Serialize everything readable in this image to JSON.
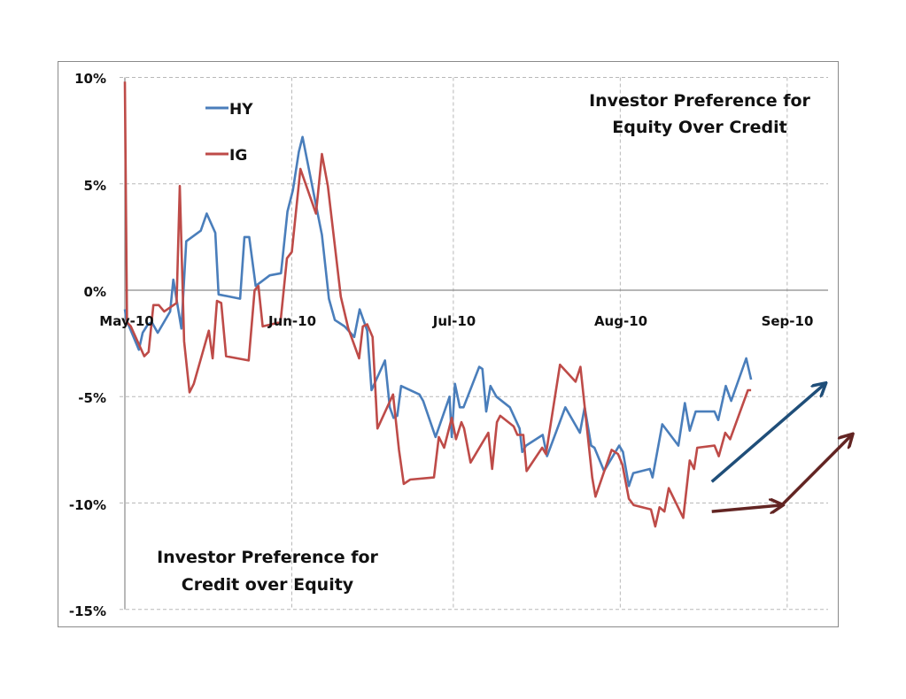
{
  "chart_data": {
    "type": "line",
    "title": "",
    "xlabel": "",
    "ylabel": "",
    "ylim": [
      -15,
      10
    ],
    "y_ticks": [
      "10%",
      "5%",
      "0%",
      "-5%",
      "-10%",
      "-15%"
    ],
    "y_tick_values": [
      10,
      5,
      0,
      -5,
      -10,
      -15
    ],
    "x_ticks": [
      "May-10",
      "Jun-10",
      "Jul-10",
      "Aug-10",
      "Sep-10"
    ],
    "x_tick_days": [
      0,
      31,
      61,
      92,
      123
    ],
    "grid": true,
    "legend": {
      "position": "upper-left-inside",
      "entries": [
        "HY",
        "IG"
      ]
    },
    "annotations": [
      {
        "text": [
          "Investor Preference for",
          "Equity Over Credit"
        ],
        "position": "upper-right"
      },
      {
        "text": [
          "Investor Preference for",
          "Credit over Equity"
        ],
        "position": "lower-left"
      },
      {
        "type": "arrow",
        "color": "#1f4e79",
        "series": "HY",
        "description": "upward trend arrow",
        "from_day": 109,
        "from_value": -9.0,
        "to_day": 130,
        "to_value": -4.4
      },
      {
        "type": "arrow",
        "color": "#632523",
        "series": "IG",
        "description": "flat arrow",
        "from_day": 109,
        "from_value": -10.4,
        "to_day": 122,
        "to_value": -10.1
      },
      {
        "type": "arrow",
        "color": "#632523",
        "series": "IG",
        "description": "upward trend arrow",
        "from_day": 122,
        "from_value": -10.1,
        "to_day": 135,
        "to_value": -6.8
      }
    ],
    "x_unit": "days since 2010-05-01",
    "series": [
      {
        "name": "HY",
        "color": "#4a7ebb",
        "points": [
          [
            0,
            -0.9
          ],
          [
            0.3,
            -1.4
          ],
          [
            2.6,
            -2.8
          ],
          [
            3.3,
            -2.0
          ],
          [
            4.3,
            -1.6
          ],
          [
            5.0,
            -1.5
          ],
          [
            6.1,
            -2.0
          ],
          [
            8.4,
            -1.0
          ],
          [
            9.0,
            0.5
          ],
          [
            10.5,
            -1.8
          ],
          [
            11.4,
            2.3
          ],
          [
            14.1,
            2.8
          ],
          [
            15.2,
            3.6
          ],
          [
            16.8,
            2.7
          ],
          [
            17.4,
            -0.2
          ],
          [
            21.4,
            -0.4
          ],
          [
            22.2,
            2.5
          ],
          [
            23.1,
            2.5
          ],
          [
            24.3,
            0.2
          ],
          [
            26.9,
            0.7
          ],
          [
            29.0,
            0.8
          ],
          [
            30.2,
            3.7
          ],
          [
            31.2,
            4.7
          ],
          [
            32.3,
            6.5
          ],
          [
            33.0,
            7.2
          ],
          [
            35.5,
            4.0
          ],
          [
            36.6,
            2.6
          ],
          [
            37.9,
            -0.4
          ],
          [
            39.0,
            -1.4
          ],
          [
            40.8,
            -1.7
          ],
          [
            42.6,
            -2.2
          ],
          [
            43.6,
            -0.9
          ],
          [
            45.0,
            -1.9
          ],
          [
            45.8,
            -4.7
          ],
          [
            48.3,
            -3.3
          ],
          [
            49.2,
            -5.5
          ],
          [
            49.9,
            -6.0
          ],
          [
            50.6,
            -5.9
          ],
          [
            51.3,
            -4.5
          ],
          [
            54.7,
            -4.9
          ],
          [
            55.4,
            -5.2
          ],
          [
            57.7,
            -6.9
          ],
          [
            60.3,
            -5.0
          ],
          [
            60.7,
            -6.9
          ],
          [
            61.3,
            -4.4
          ],
          [
            62.2,
            -5.5
          ],
          [
            62.9,
            -5.5
          ],
          [
            65.8,
            -3.6
          ],
          [
            66.4,
            -3.7
          ],
          [
            67.1,
            -5.7
          ],
          [
            67.9,
            -4.5
          ],
          [
            69.0,
            -5.0
          ],
          [
            71.5,
            -5.5
          ],
          [
            73.3,
            -6.5
          ],
          [
            73.8,
            -7.6
          ],
          [
            74.5,
            -7.3
          ],
          [
            77.6,
            -6.8
          ],
          [
            78.4,
            -7.8
          ],
          [
            81.8,
            -5.5
          ],
          [
            84.5,
            -6.7
          ],
          [
            85.4,
            -5.5
          ],
          [
            86.6,
            -7.3
          ],
          [
            87.2,
            -7.4
          ],
          [
            89.0,
            -8.5
          ],
          [
            91.8,
            -7.3
          ],
          [
            92.5,
            -7.6
          ],
          [
            93.6,
            -9.2
          ],
          [
            94.4,
            -8.6
          ],
          [
            97.5,
            -8.4
          ],
          [
            98.0,
            -8.8
          ],
          [
            99.8,
            -6.3
          ],
          [
            102.8,
            -7.3
          ],
          [
            104.0,
            -5.3
          ],
          [
            104.9,
            -6.6
          ],
          [
            106.0,
            -5.7
          ],
          [
            109.5,
            -5.7
          ],
          [
            110.2,
            -6.1
          ],
          [
            111.6,
            -4.5
          ],
          [
            112.6,
            -5.2
          ],
          [
            115.4,
            -3.2
          ],
          [
            116.3,
            -4.2
          ]
        ]
      },
      {
        "name": "IG",
        "color": "#be4b48",
        "points": [
          [
            0,
            9.8
          ],
          [
            0.4,
            -1.5
          ],
          [
            1.1,
            -1.7
          ],
          [
            3.6,
            -3.1
          ],
          [
            4.4,
            -2.9
          ],
          [
            5.3,
            -0.7
          ],
          [
            6.3,
            -0.7
          ],
          [
            7.3,
            -1.0
          ],
          [
            9.6,
            -0.6
          ],
          [
            10.2,
            4.9
          ],
          [
            11.0,
            -2.4
          ],
          [
            12.0,
            -4.8
          ],
          [
            12.8,
            -4.4
          ],
          [
            15.6,
            -1.9
          ],
          [
            16.3,
            -3.2
          ],
          [
            17.1,
            -0.5
          ],
          [
            17.9,
            -0.6
          ],
          [
            18.8,
            -3.1
          ],
          [
            23.0,
            -3.3
          ],
          [
            24.1,
            0.0
          ],
          [
            24.8,
            0.2
          ],
          [
            25.6,
            -1.7
          ],
          [
            28.9,
            -1.5
          ],
          [
            30.1,
            1.5
          ],
          [
            31.0,
            1.8
          ],
          [
            32.6,
            5.7
          ],
          [
            35.5,
            3.6
          ],
          [
            36.6,
            6.4
          ],
          [
            37.7,
            4.9
          ],
          [
            40.1,
            -0.3
          ],
          [
            41.5,
            -1.8
          ],
          [
            43.5,
            -3.2
          ],
          [
            44.2,
            -1.7
          ],
          [
            45.0,
            -1.6
          ],
          [
            46.0,
            -2.2
          ],
          [
            46.9,
            -6.5
          ],
          [
            49.8,
            -4.9
          ],
          [
            50.9,
            -7.5
          ],
          [
            51.8,
            -9.1
          ],
          [
            53.0,
            -8.9
          ],
          [
            57.4,
            -8.8
          ],
          [
            58.3,
            -6.9
          ],
          [
            59.3,
            -7.4
          ],
          [
            60.7,
            -6.0
          ],
          [
            61.5,
            -7.0
          ],
          [
            62.5,
            -6.2
          ],
          [
            63.0,
            -6.5
          ],
          [
            64.2,
            -8.1
          ],
          [
            67.5,
            -6.7
          ],
          [
            68.2,
            -8.4
          ],
          [
            69.1,
            -6.2
          ],
          [
            69.7,
            -5.9
          ],
          [
            72.2,
            -6.4
          ],
          [
            72.9,
            -6.8
          ],
          [
            74.0,
            -6.8
          ],
          [
            74.6,
            -8.5
          ],
          [
            77.5,
            -7.4
          ],
          [
            78.2,
            -7.7
          ],
          [
            80.8,
            -3.5
          ],
          [
            83.7,
            -4.3
          ],
          [
            84.6,
            -3.6
          ],
          [
            86.8,
            -8.8
          ],
          [
            87.4,
            -9.7
          ],
          [
            90.4,
            -7.5
          ],
          [
            91.6,
            -7.7
          ],
          [
            92.4,
            -8.2
          ],
          [
            93.6,
            -9.8
          ],
          [
            94.5,
            -10.1
          ],
          [
            97.7,
            -10.3
          ],
          [
            98.5,
            -11.1
          ],
          [
            99.3,
            -10.2
          ],
          [
            100.2,
            -10.4
          ],
          [
            101.0,
            -9.3
          ],
          [
            103.7,
            -10.7
          ],
          [
            104.9,
            -8.0
          ],
          [
            105.7,
            -8.4
          ],
          [
            106.3,
            -7.4
          ],
          [
            109.5,
            -7.3
          ],
          [
            110.3,
            -7.8
          ],
          [
            111.5,
            -6.7
          ],
          [
            112.4,
            -7.0
          ],
          [
            115.7,
            -4.7
          ],
          [
            116.3,
            -4.7
          ]
        ]
      }
    ]
  },
  "legend": {
    "hy_label": "HY",
    "ig_label": "IG"
  },
  "annotations": {
    "top_right_line1": "Investor Preference for",
    "top_right_line2": "Equity Over Credit",
    "bottom_left_line1": "Investor Preference for",
    "bottom_left_line2": "Credit over Equity"
  },
  "axes": {
    "y_labels": [
      "10%",
      "5%",
      "0%",
      "-5%",
      "-10%",
      "-15%"
    ],
    "x_labels": [
      "May-10",
      "Jun-10",
      "Jul-10",
      "Aug-10",
      "Sep-10"
    ]
  }
}
